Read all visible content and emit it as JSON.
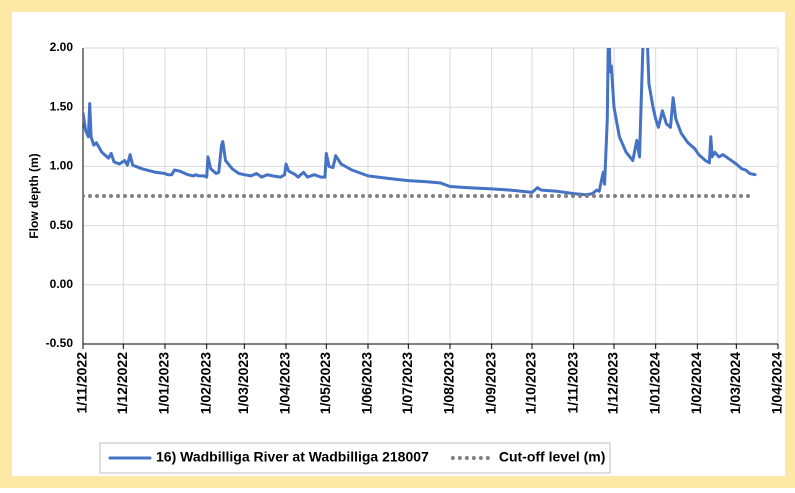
{
  "chart_data": {
    "type": "line",
    "ylabel": "Flow depth (m)",
    "ylim": [
      -0.5,
      2
    ],
    "yticks": [
      {
        "value": 2,
        "label": "2.00"
      },
      {
        "value": 1.5,
        "label": "1.50"
      },
      {
        "value": 1,
        "label": "1.00"
      },
      {
        "value": 0.5,
        "label": "0.50"
      },
      {
        "value": 0,
        "label": "0.00"
      },
      {
        "value": -0.5,
        "label": "-0.50"
      }
    ],
    "xlim": [
      "2022-11-01",
      "2024-04-01"
    ],
    "xticks": [
      {
        "value": "2022-11-01",
        "label": "1/11/2022"
      },
      {
        "value": "2022-12-01",
        "label": "1/12/2022"
      },
      {
        "value": "2023-01-01",
        "label": "1/01/2023"
      },
      {
        "value": "2023-02-01",
        "label": "1/02/2023"
      },
      {
        "value": "2023-03-01",
        "label": "1/03/2023"
      },
      {
        "value": "2023-04-01",
        "label": "1/04/2023"
      },
      {
        "value": "2023-05-01",
        "label": "1/05/2023"
      },
      {
        "value": "2023-06-01",
        "label": "1/06/2023"
      },
      {
        "value": "2023-07-01",
        "label": "1/07/2023"
      },
      {
        "value": "2023-08-01",
        "label": "1/08/2023"
      },
      {
        "value": "2023-09-01",
        "label": "1/09/2023"
      },
      {
        "value": "2023-10-01",
        "label": "1/10/2023"
      },
      {
        "value": "2023-11-01",
        "label": "1/11/2023"
      },
      {
        "value": "2023-12-01",
        "label": "1/12/2023"
      },
      {
        "value": "2024-01-01",
        "label": "1/01/2024"
      },
      {
        "value": "2024-02-01",
        "label": "1/02/2024"
      },
      {
        "value": "2024-03-01",
        "label": "1/03/2024"
      },
      {
        "value": "2024-04-01",
        "label": "1/04/2024"
      }
    ],
    "grid": true,
    "legend": "bottom",
    "series": [
      {
        "name": "16) Wadbilliga River at Wadbilliga 218007",
        "color": "#4472c4",
        "style": "solid",
        "x": [
          "2022-11-01",
          "2022-11-03",
          "2022-11-05",
          "2022-11-06",
          "2022-11-07",
          "2022-11-09",
          "2022-11-11",
          "2022-11-15",
          "2022-11-20",
          "2022-11-22",
          "2022-11-24",
          "2022-11-28",
          "2022-12-02",
          "2022-12-04",
          "2022-12-06",
          "2022-12-08",
          "2022-12-15",
          "2022-12-25",
          "2023-01-01",
          "2023-01-03",
          "2023-01-06",
          "2023-01-08",
          "2023-01-12",
          "2023-01-18",
          "2023-01-22",
          "2023-01-24",
          "2023-01-26",
          "2023-01-30",
          "2023-02-01",
          "2023-02-02",
          "2023-02-04",
          "2023-02-08",
          "2023-02-10",
          "2023-02-12",
          "2023-02-13",
          "2023-02-15",
          "2023-02-20",
          "2023-02-25",
          "2023-03-01",
          "2023-03-06",
          "2023-03-10",
          "2023-03-14",
          "2023-03-18",
          "2023-03-22",
          "2023-03-28",
          "2023-03-31",
          "2023-04-01",
          "2023-04-03",
          "2023-04-08",
          "2023-04-10",
          "2023-04-14",
          "2023-04-17",
          "2023-04-22",
          "2023-04-27",
          "2023-04-30",
          "2023-05-01",
          "2023-05-03",
          "2023-05-06",
          "2023-05-08",
          "2023-05-12",
          "2023-05-20",
          "2023-06-01",
          "2023-06-15",
          "2023-07-01",
          "2023-07-15",
          "2023-07-25",
          "2023-08-01",
          "2023-08-15",
          "2023-09-01",
          "2023-09-15",
          "2023-10-01",
          "2023-10-03",
          "2023-10-05",
          "2023-10-08",
          "2023-10-20",
          "2023-11-01",
          "2023-11-10",
          "2023-11-15",
          "2023-11-18",
          "2023-11-20",
          "2023-11-23",
          "2023-11-24",
          "2023-11-26",
          "2023-11-27",
          "2023-11-28",
          "2023-11-29",
          "2023-12-01",
          "2023-12-05",
          "2023-12-10",
          "2023-12-15",
          "2023-12-18",
          "2023-12-20",
          "2023-12-23",
          "2023-12-25",
          "2023-12-27",
          "2023-12-30",
          "2024-01-01",
          "2024-01-03",
          "2024-01-06",
          "2024-01-09",
          "2024-01-12",
          "2024-01-14",
          "2024-01-16",
          "2024-01-20",
          "2024-01-25",
          "2024-01-30",
          "2024-02-02",
          "2024-02-07",
          "2024-02-10",
          "2024-02-11",
          "2024-02-12",
          "2024-02-14",
          "2024-02-17",
          "2024-02-20",
          "2024-02-25",
          "2024-03-01",
          "2024-03-05",
          "2024-03-08",
          "2024-03-11",
          "2024-03-15"
        ],
        "values": [
          1.45,
          1.3,
          1.25,
          1.53,
          1.25,
          1.18,
          1.2,
          1.12,
          1.07,
          1.11,
          1.04,
          1.02,
          1.05,
          1.01,
          1.1,
          1.01,
          0.98,
          0.95,
          0.94,
          0.93,
          0.93,
          0.97,
          0.96,
          0.93,
          0.92,
          0.93,
          0.92,
          0.92,
          0.91,
          1.08,
          0.98,
          0.94,
          0.95,
          1.18,
          1.21,
          1.05,
          0.98,
          0.94,
          0.93,
          0.92,
          0.94,
          0.91,
          0.93,
          0.92,
          0.91,
          0.93,
          1.02,
          0.96,
          0.93,
          0.91,
          0.95,
          0.91,
          0.93,
          0.91,
          0.91,
          1.11,
          1.0,
          0.99,
          1.09,
          1.02,
          0.97,
          0.92,
          0.9,
          0.88,
          0.87,
          0.86,
          0.83,
          0.82,
          0.81,
          0.8,
          0.78,
          0.8,
          0.82,
          0.8,
          0.79,
          0.77,
          0.76,
          0.77,
          0.8,
          0.79,
          0.95,
          0.85,
          1.4,
          2.3,
          1.8,
          1.85,
          1.5,
          1.25,
          1.12,
          1.05,
          1.22,
          1.08,
          2.2,
          2.3,
          1.7,
          1.5,
          1.4,
          1.33,
          1.47,
          1.36,
          1.33,
          1.58,
          1.4,
          1.28,
          1.2,
          1.15,
          1.1,
          1.05,
          1.03,
          1.25,
          1.08,
          1.12,
          1.08,
          1.1,
          1.06,
          1.02,
          0.98,
          0.97,
          0.94,
          0.93
        ]
      },
      {
        "name": "Cut-off level (m)",
        "color": "#808080",
        "style": "dotted",
        "x": [
          "2022-11-01",
          "2024-03-10"
        ],
        "values": [
          0.75,
          0.75
        ]
      }
    ]
  }
}
